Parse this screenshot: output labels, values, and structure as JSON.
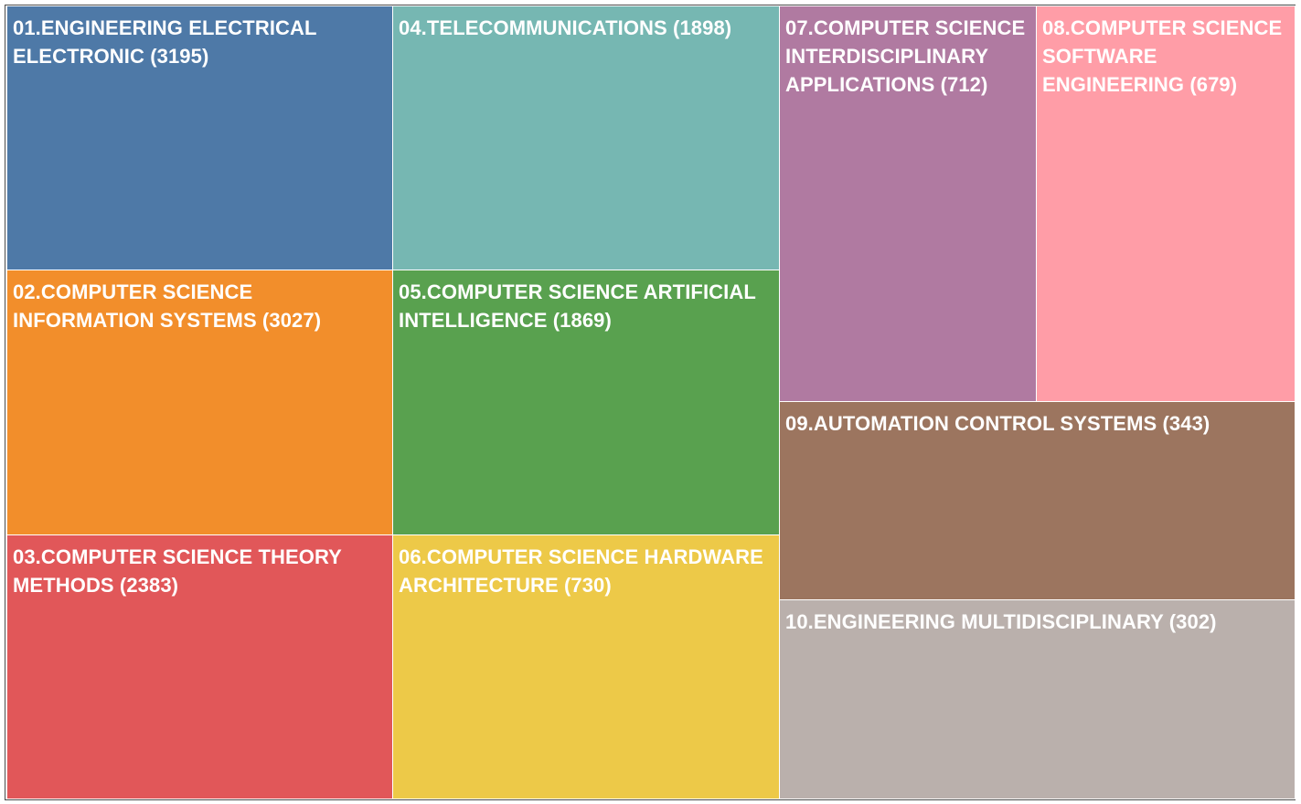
{
  "chart_data": {
    "type": "treemap",
    "items": [
      {
        "label": "01.ENGINEERING ELECTRICAL ELECTRONIC (3195)",
        "name": "01.ENGINEERING ELECTRICAL ELECTRONIC",
        "value": 3195,
        "color": "#4e79a7"
      },
      {
        "label": "02.COMPUTER SCIENCE INFORMATION SYSTEMS (3027)",
        "name": "02.COMPUTER SCIENCE INFORMATION SYSTEMS",
        "value": 3027,
        "color": "#f28e2b"
      },
      {
        "label": "03.COMPUTER SCIENCE THEORY METHODS (2383)",
        "name": "03.COMPUTER SCIENCE THEORY METHODS",
        "value": 2383,
        "color": "#e15759"
      },
      {
        "label": "04.TELECOMMUNICATIONS (1898)",
        "name": "04.TELECOMMUNICATIONS",
        "value": 1898,
        "color": "#76b7b2"
      },
      {
        "label": "05.COMPUTER SCIENCE ARTIFICIAL INTELLIGENCE (1869)",
        "name": "05.COMPUTER SCIENCE ARTIFICIAL INTELLIGENCE",
        "value": 1869,
        "color": "#59a14f"
      },
      {
        "label": "06.COMPUTER SCIENCE HARDWARE ARCHITECTURE (730)",
        "name": "06.COMPUTER SCIENCE HARDWARE ARCHITECTURE",
        "value": 730,
        "color": "#edc948"
      },
      {
        "label": "07.COMPUTER SCIENCE INTERDISCIPLINARY APPLICATIONS (712)",
        "name": "07.COMPUTER SCIENCE INTERDISCIPLINARY APPLICATIONS",
        "value": 712,
        "color": "#b07aa1"
      },
      {
        "label": "08.COMPUTER SCIENCE SOFTWARE ENGINEERING (679)",
        "name": "08.COMPUTER SCIENCE SOFTWARE ENGINEERING",
        "value": 679,
        "color": "#ff9da7"
      },
      {
        "label": "09.AUTOMATION CONTROL SYSTEMS (343)",
        "name": "09.AUTOMATION CONTROL SYSTEMS",
        "value": 343,
        "color": "#9c755f"
      },
      {
        "label": "10.ENGINEERING MULTIDISCIPLINARY (302)",
        "name": "10.ENGINEERING MULTIDISCIPLINARY",
        "value": 302,
        "color": "#bab0ac"
      }
    ]
  }
}
